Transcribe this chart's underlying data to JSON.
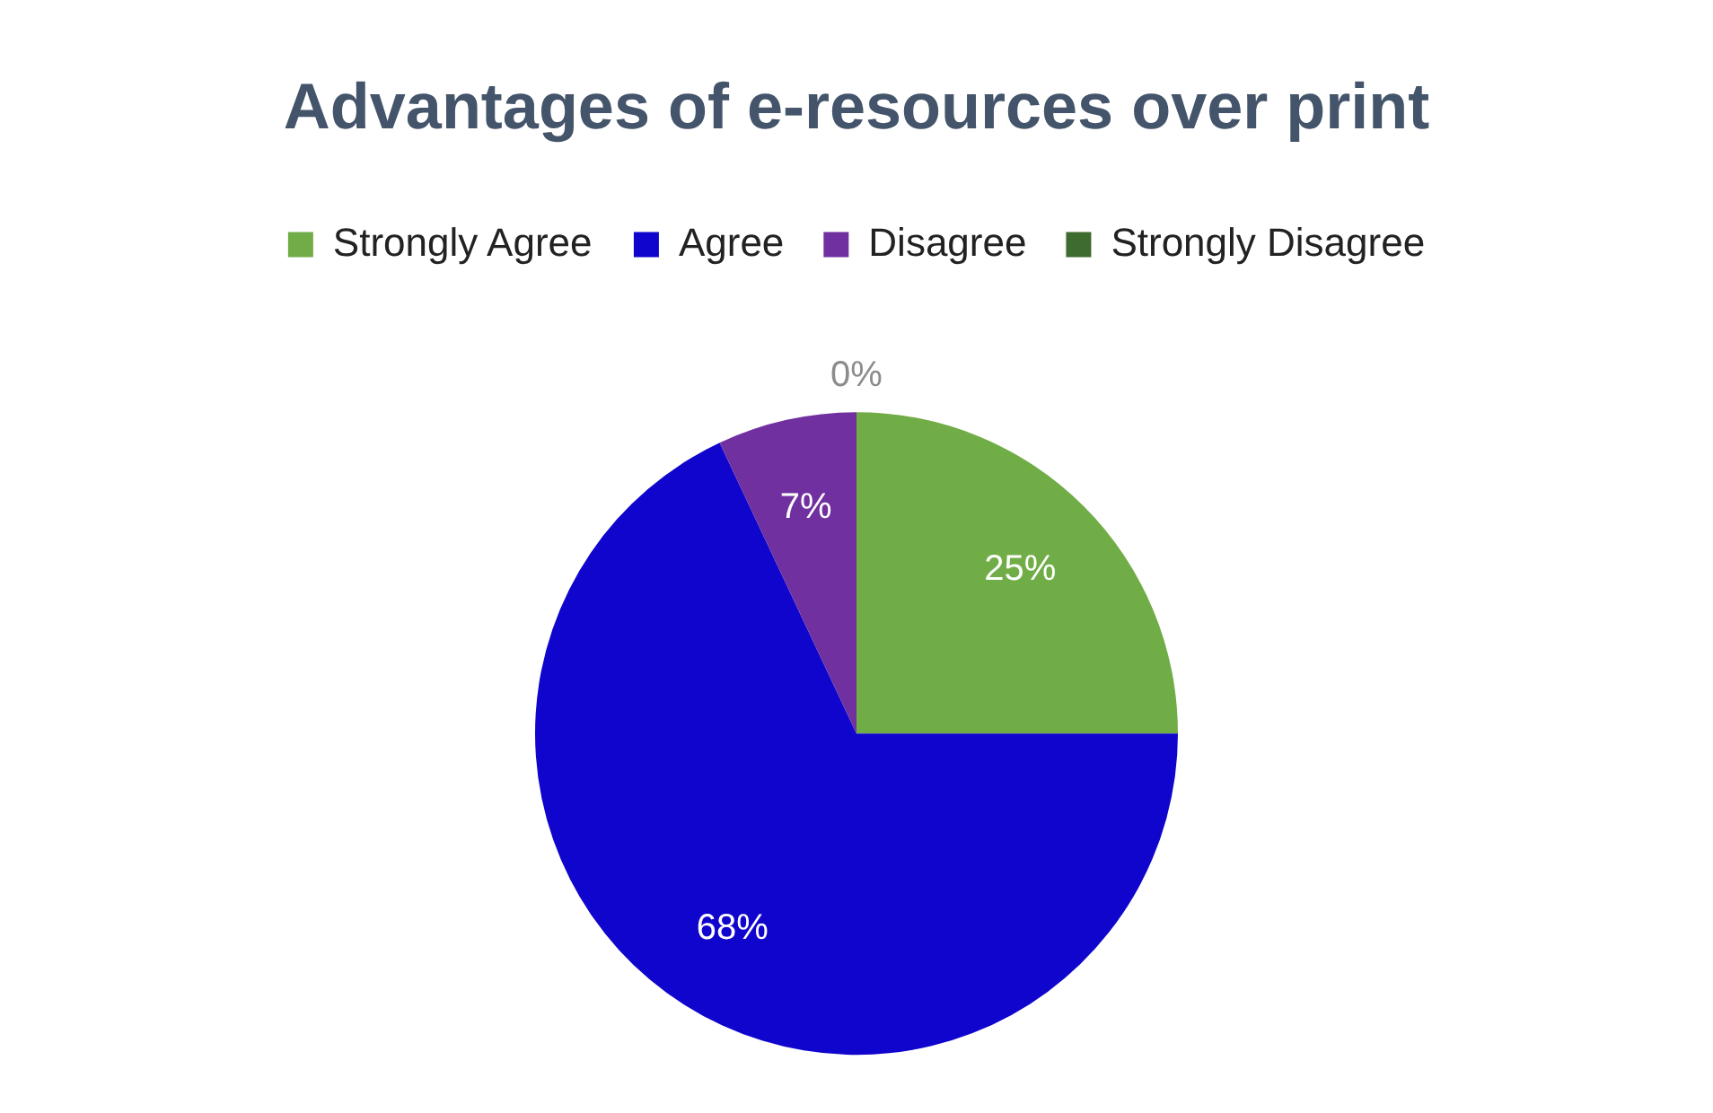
{
  "chart_data": {
    "type": "pie",
    "title": "Advantages of e-resources over print",
    "categories": [
      "Strongly Agree",
      "Agree",
      "Disagree",
      "Strongly Disagree"
    ],
    "values": [
      25,
      68,
      7,
      0
    ],
    "colors": [
      "#70ad47",
      "#1005cc",
      "#7030a0",
      "#3e6b2e"
    ],
    "value_labels": [
      "25%",
      "68%",
      "7%",
      "0%"
    ],
    "legend": "top"
  }
}
